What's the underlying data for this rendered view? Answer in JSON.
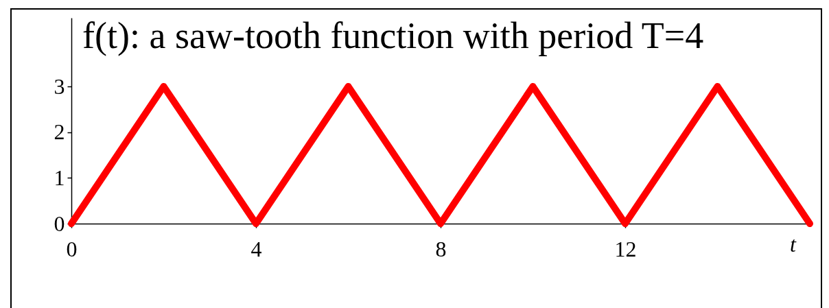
{
  "chart_data": {
    "type": "line",
    "title": "f(t): a saw-tooth function with period T=4",
    "xlabel": "t",
    "x": [
      0,
      2,
      4,
      6,
      8,
      10,
      12,
      14,
      16
    ],
    "series": [
      {
        "color": "#ff0000",
        "values": [
          0,
          3,
          0,
          3,
          0,
          3,
          0,
          3,
          0
        ]
      }
    ],
    "xlim": [
      0,
      16
    ],
    "ylim": [
      0,
      4.5
    ],
    "xticks": [
      0,
      4,
      8,
      12
    ],
    "yticks": [
      0,
      1,
      2,
      3
    ],
    "line_style": "solid"
  }
}
